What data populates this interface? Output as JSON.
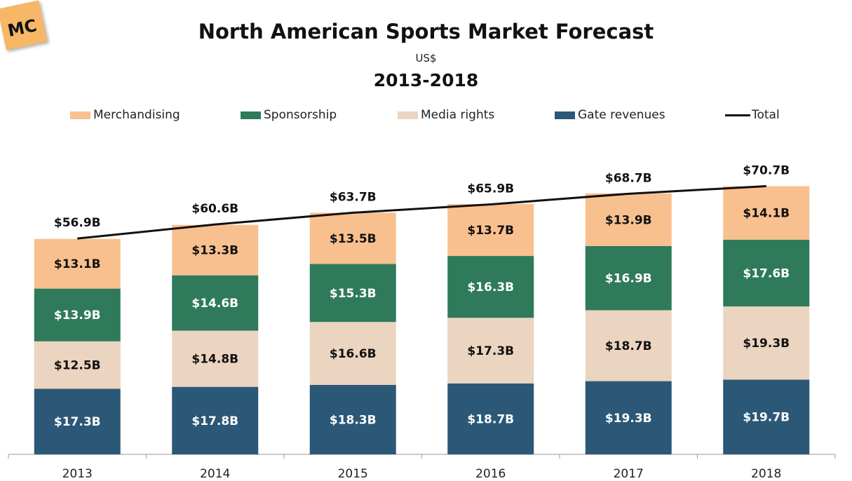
{
  "logo_text": "MC",
  "chart_data": {
    "type": "bar",
    "stacked": true,
    "title": "North American Sports Market Forecast",
    "subtitle": "US$",
    "period": "2013-2018",
    "categories": [
      "2013",
      "2014",
      "2015",
      "2016",
      "2017",
      "2018"
    ],
    "series": [
      {
        "name": "Gate revenues",
        "color": "#2c5877",
        "values": [
          17.3,
          17.8,
          18.3,
          18.7,
          19.3,
          19.7
        ],
        "labels": [
          "$17.3B",
          "$17.8B",
          "$18.3B",
          "$18.7B",
          "$19.3B",
          "$19.7B"
        ]
      },
      {
        "name": "Media rights",
        "color": "#ebd4c0",
        "values": [
          12.5,
          14.8,
          16.6,
          17.3,
          18.7,
          19.3
        ],
        "labels": [
          "$12.5B",
          "$14.8B",
          "$16.6B",
          "$17.3B",
          "$18.7B",
          "$19.3B"
        ]
      },
      {
        "name": "Sponsorship",
        "color": "#2e7a5b",
        "values": [
          13.9,
          14.6,
          15.3,
          16.3,
          16.9,
          17.6
        ],
        "labels": [
          "$13.9B",
          "$14.6B",
          "$15.3B",
          "$16.3B",
          "$16.9B",
          "$17.6B"
        ]
      },
      {
        "name": "Merchandising",
        "color": "#f9c08f",
        "values": [
          13.1,
          13.3,
          13.5,
          13.7,
          13.9,
          14.1
        ],
        "labels": [
          "$13.1B",
          "$13.3B",
          "$13.5B",
          "$13.7B",
          "$13.9B",
          "$14.1B"
        ]
      }
    ],
    "total": {
      "name": "Total",
      "type": "line",
      "color": "#111111",
      "values": [
        56.9,
        60.6,
        63.7,
        65.9,
        68.7,
        70.7
      ],
      "labels": [
        "$56.9B",
        "$60.6B",
        "$63.7B",
        "$65.9B",
        "$68.7B",
        "$70.7B"
      ]
    },
    "legend_order": [
      "Merchandising",
      "Sponsorship",
      "Media rights",
      "Gate revenues",
      "Total"
    ],
    "legend_position": "top",
    "grid": false,
    "ylim": [
      0,
      72
    ]
  }
}
